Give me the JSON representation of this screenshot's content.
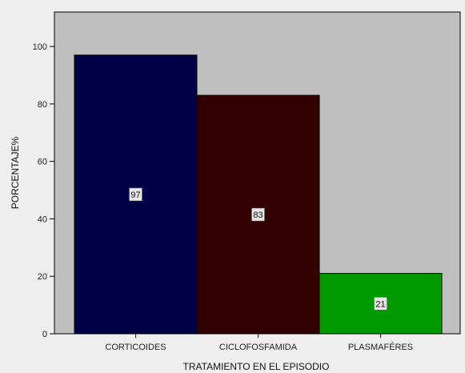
{
  "chart_data": {
    "type": "bar",
    "title": "",
    "xlabel": "TRATAMIENTO EN EL EPISODIO",
    "ylabel": "PORCENTAJE%",
    "categories": [
      "CORTICOIDES",
      "CICLOFOSFAMIDA",
      "PLASMAFÉRES"
    ],
    "values": [
      97,
      83,
      21
    ],
    "data_labels": [
      "97",
      "83",
      "21"
    ],
    "bar_colors": [
      "#000047",
      "#330000",
      "#009900"
    ],
    "ylim": [
      0,
      112
    ],
    "yticks": [
      0,
      20,
      40,
      60,
      80,
      100
    ],
    "ytick_labels": [
      "0",
      "20",
      "40",
      "60",
      "80",
      "100"
    ],
    "grid": false,
    "legend": "none",
    "plot_background": "#bfbfbf",
    "page_background": "#efefef"
  }
}
